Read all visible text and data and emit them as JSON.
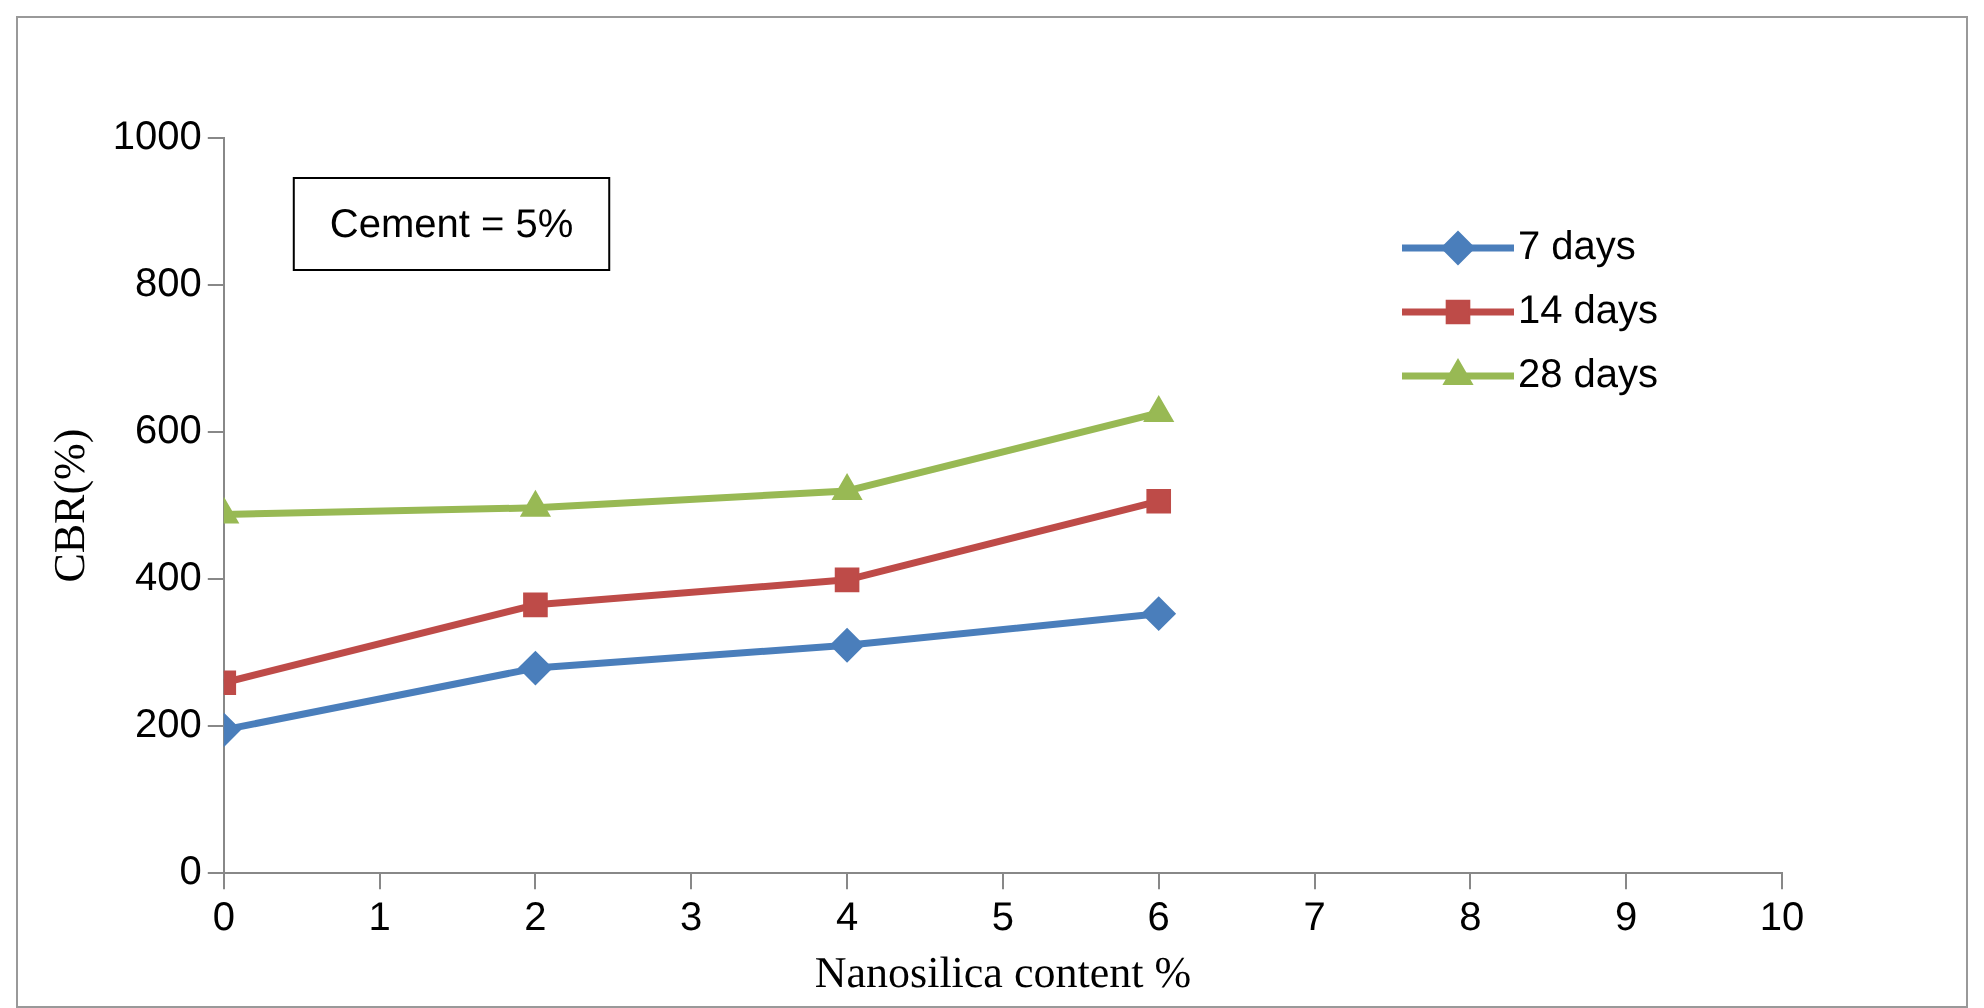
{
  "chart_data": {
    "type": "line",
    "xlabel": "Nanosilica content %",
    "ylabel": "CBR(%)",
    "x": [
      0,
      2,
      4,
      6
    ],
    "series": [
      {
        "name": "7 days",
        "color": "#4a7ebb",
        "values": [
          195,
          279,
          310,
          353
        ],
        "marker": "diamond"
      },
      {
        "name": "14 days",
        "color": "#be4b48",
        "values": [
          259,
          365,
          399,
          506
        ],
        "marker": "square"
      },
      {
        "name": "28 days",
        "color": "#98b954",
        "values": [
          488,
          497,
          520,
          626
        ],
        "marker": "triangle"
      }
    ],
    "xlim": [
      0,
      10
    ],
    "xticks": [
      0,
      1,
      2,
      3,
      4,
      5,
      6,
      7,
      8,
      9,
      10
    ],
    "ylim": [
      0,
      1000
    ],
    "yticks": [
      0,
      200,
      400,
      600,
      800,
      1000
    ],
    "grid": false,
    "legend": "top right",
    "annotations": [
      "Cement = 5%"
    ]
  }
}
